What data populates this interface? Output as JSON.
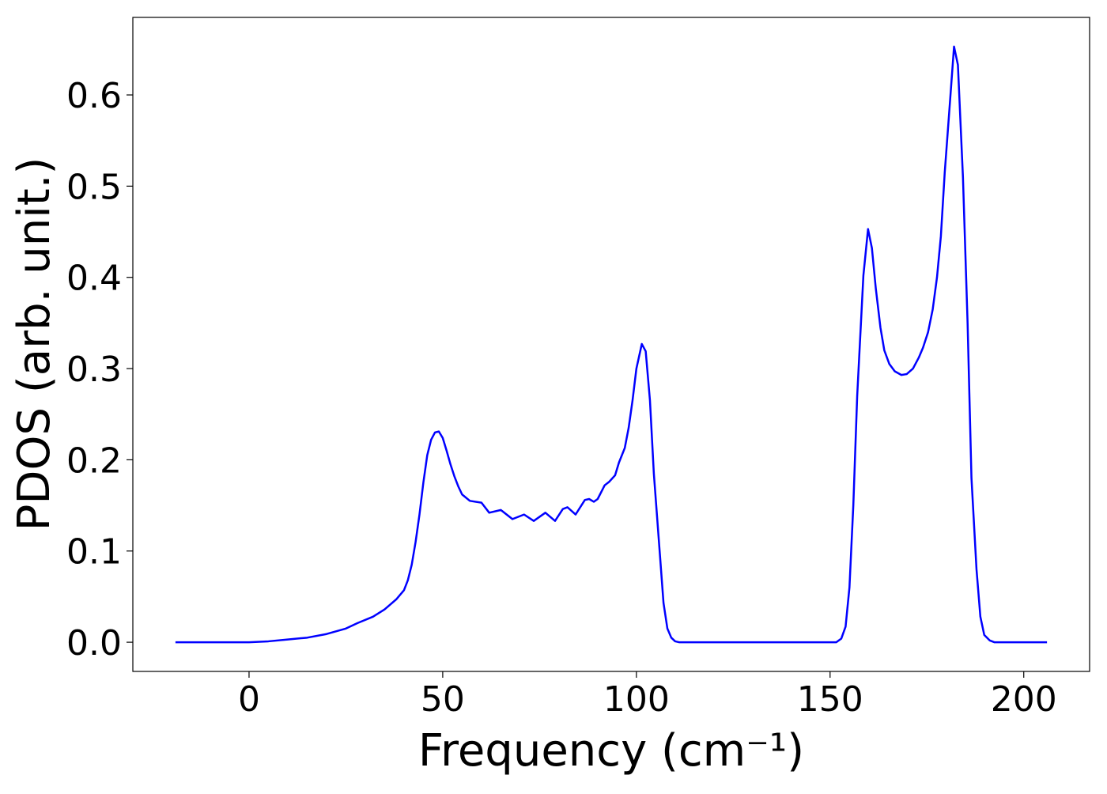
{
  "chart_data": {
    "type": "line",
    "x_label": "Frequency (cm⁻¹)",
    "y_label": "PDOS (arb. unit.)",
    "color": "#0000ff",
    "x": [
      -19,
      0,
      5,
      10,
      15,
      20,
      25,
      28,
      32,
      35,
      38,
      40,
      41,
      42,
      43,
      44,
      45,
      46,
      47,
      48,
      49,
      50,
      51,
      52,
      53,
      54,
      55,
      57,
      60,
      62,
      65,
      68,
      71,
      73.5,
      76.5,
      79,
      81,
      82.2,
      84.3,
      86.7,
      87.8,
      89,
      90,
      91.8,
      93,
      94.5,
      95.5,
      97,
      98,
      99,
      100,
      101.4,
      102.4,
      103.5,
      104.5,
      106,
      107,
      108,
      109,
      110,
      111,
      151.6,
      152.9,
      154,
      155,
      156,
      157,
      158.6,
      159.8,
      160.8,
      161.8,
      163,
      164,
      165.3,
      166.7,
      168.4,
      169.8,
      171.4,
      172.9,
      174,
      175.3,
      176.5,
      177.6,
      178.6,
      179.6,
      181,
      182,
      183,
      184.3,
      185.5,
      186.5,
      187.8,
      188.8,
      189.8,
      191.2,
      192.4,
      206
    ],
    "values": [
      0,
      0,
      0.001,
      0.003,
      0.005,
      0.009,
      0.015,
      0.021,
      0.028,
      0.036,
      0.047,
      0.057,
      0.068,
      0.085,
      0.11,
      0.14,
      0.175,
      0.205,
      0.222,
      0.23,
      0.231,
      0.224,
      0.21,
      0.195,
      0.182,
      0.171,
      0.162,
      0.155,
      0.153,
      0.142,
      0.145,
      0.135,
      0.14,
      0.133,
      0.142,
      0.133,
      0.146,
      0.148,
      0.14,
      0.156,
      0.157,
      0.154,
      0.157,
      0.172,
      0.176,
      0.183,
      0.197,
      0.213,
      0.235,
      0.265,
      0.3,
      0.327,
      0.319,
      0.265,
      0.185,
      0.1,
      0.043,
      0.015,
      0.005,
      0.001,
      0,
      0,
      0.004,
      0.017,
      0.06,
      0.15,
      0.27,
      0.402,
      0.453,
      0.432,
      0.388,
      0.345,
      0.32,
      0.305,
      0.297,
      0.293,
      0.294,
      0.3,
      0.312,
      0.323,
      0.34,
      0.365,
      0.4,
      0.445,
      0.515,
      0.595,
      0.653,
      0.633,
      0.51,
      0.35,
      0.18,
      0.08,
      0.028,
      0.008,
      0.002,
      0,
      0
    ],
    "xlim": [
      -30,
      217
    ],
    "ylim": [
      -0.032,
      0.685
    ],
    "xticks": [
      0,
      50,
      100,
      150,
      200
    ],
    "yticks": [
      {
        "value": 0,
        "label": "0.0"
      },
      0.1,
      0.2,
      0.3,
      0.4,
      0.5,
      0.6
    ],
    "grid": false
  }
}
